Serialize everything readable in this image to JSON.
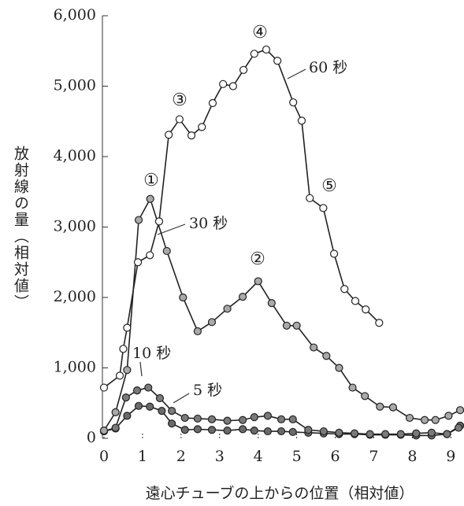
{
  "chart_data": {
    "type": "line",
    "y_label": "放射線の量（相対値）",
    "x_label": "遠心チューブの上からの位置（相対値）",
    "xlim": [
      0,
      9.3
    ],
    "xticks": [
      0,
      1,
      2,
      3,
      4,
      5,
      6,
      7,
      8,
      9
    ],
    "ylim": [
      0,
      6000
    ],
    "yticks": [
      {
        "value": 0,
        "label": "0"
      },
      {
        "value": 1000,
        "label": "1,000"
      },
      {
        "value": 2000,
        "label": "2,000"
      },
      {
        "value": 3000,
        "label": "3,000"
      },
      {
        "value": 4000,
        "label": "4,000"
      },
      {
        "value": 5000,
        "label": "5,000"
      },
      {
        "value": 6000,
        "label": "6,000"
      }
    ],
    "annotations": [
      "①",
      "②",
      "③",
      "④",
      "⑤"
    ],
    "series": [
      {
        "name": "60 秒",
        "color": "#ffffff",
        "x": [
          0,
          0.41,
          0.5,
          0.6,
          0.88,
          1.19,
          1.43,
          1.68,
          1.96,
          2.27,
          2.54,
          2.82,
          3.09,
          3.35,
          3.62,
          3.9,
          4.21,
          4.5,
          4.91,
          5.13,
          5.34,
          5.69,
          5.97,
          6.24,
          6.52,
          6.79,
          7.14
        ],
        "values": [
          720,
          890,
          1270,
          1570,
          2500,
          2600,
          3080,
          4310,
          4530,
          4300,
          4420,
          4760,
          5030,
          5000,
          5230,
          5460,
          5520,
          5360,
          4770,
          4510,
          3410,
          3270,
          2620,
          2120,
          1950,
          1830,
          1640
        ]
      },
      {
        "name": "30 秒",
        "color": "#a9a9a9",
        "x": [
          0,
          0.3,
          0.6,
          0.9,
          1.2,
          1.63,
          2.05,
          2.43,
          2.8,
          3.2,
          3.6,
          4.0,
          4.35,
          4.74,
          5.0,
          5.44,
          5.77,
          6.1,
          6.45,
          6.77,
          7.16,
          7.5,
          7.93,
          8.32,
          8.6,
          8.94,
          9.24
        ],
        "values": [
          110,
          370,
          970,
          3100,
          3400,
          2660,
          2000,
          1520,
          1650,
          1840,
          2010,
          2230,
          1920,
          1600,
          1600,
          1290,
          1170,
          1000,
          720,
          600,
          450,
          440,
          290,
          260,
          260,
          320,
          400
        ]
      },
      {
        "name": "10 秒",
        "color": "#7a7a7a",
        "x": [
          0,
          0.3,
          0.57,
          0.86,
          1.15,
          1.45,
          1.76,
          2.1,
          2.43,
          2.8,
          3.2,
          3.6,
          3.9,
          4.25,
          4.6,
          4.9,
          5.3,
          5.7,
          6.1,
          6.5,
          6.9,
          7.3,
          7.7,
          8.1,
          8.5,
          8.9,
          9.2
        ],
        "values": [
          100,
          150,
          580,
          680,
          720,
          570,
          390,
          290,
          280,
          270,
          250,
          260,
          300,
          320,
          270,
          270,
          120,
          100,
          80,
          70,
          60,
          60,
          60,
          70,
          80,
          60,
          150
        ]
      },
      {
        "name": "5 秒",
        "color": "#6a6a6a",
        "x": [
          0,
          0.3,
          0.6,
          0.9,
          1.19,
          1.5,
          1.76,
          2.1,
          2.43,
          2.8,
          3.2,
          3.6,
          3.9,
          4.25,
          4.6,
          4.9,
          5.3,
          5.7,
          6.1,
          6.5,
          6.9,
          7.3,
          7.7,
          8.1,
          8.5,
          8.9,
          9.24
        ],
        "values": [
          100,
          140,
          320,
          460,
          450,
          390,
          210,
          120,
          130,
          120,
          110,
          130,
          110,
          100,
          100,
          90,
          80,
          70,
          60,
          60,
          50,
          50,
          50,
          40,
          40,
          60,
          180
        ]
      }
    ]
  }
}
